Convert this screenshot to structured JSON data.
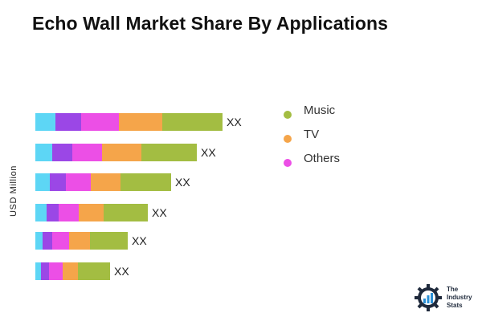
{
  "title": "Echo Wall Market Share By Applications",
  "chart_data": {
    "type": "bar",
    "orientation": "horizontal",
    "stacked": true,
    "title": "Echo Wall Market Share By Applications",
    "ylabel": "USD Million",
    "xlabel": "",
    "grid": false,
    "legend_position": "right",
    "categories": [
      "",
      "",
      "",
      "",
      "",
      ""
    ],
    "data_labels": [
      "XX",
      "XX",
      "XX",
      "XX",
      "XX",
      "XX"
    ],
    "series": [
      {
        "color": "#5dd6f5",
        "values": [
          25,
          21,
          18,
          14,
          9,
          7
        ]
      },
      {
        "color": "#9b47e6",
        "values": [
          32,
          25,
          20,
          15,
          12,
          10
        ]
      },
      {
        "color": "#ec4fe6",
        "values": [
          47,
          37,
          31,
          25,
          21,
          17
        ]
      },
      {
        "color": "#f5a54a",
        "values": [
          54,
          49,
          37,
          31,
          26,
          19
        ]
      },
      {
        "name": "Music",
        "color": "#a3bd42",
        "values": [
          75,
          69,
          63,
          55,
          47,
          40
        ]
      }
    ],
    "legend": [
      {
        "label": "Music",
        "color": "#a3bd42"
      },
      {
        "label": "TV",
        "color": "#f5a54a"
      },
      {
        "label": "Others",
        "color": "#ec4fe6"
      }
    ]
  },
  "logo": {
    "line1": "The",
    "line2": "Industry",
    "line3": "Stats"
  }
}
